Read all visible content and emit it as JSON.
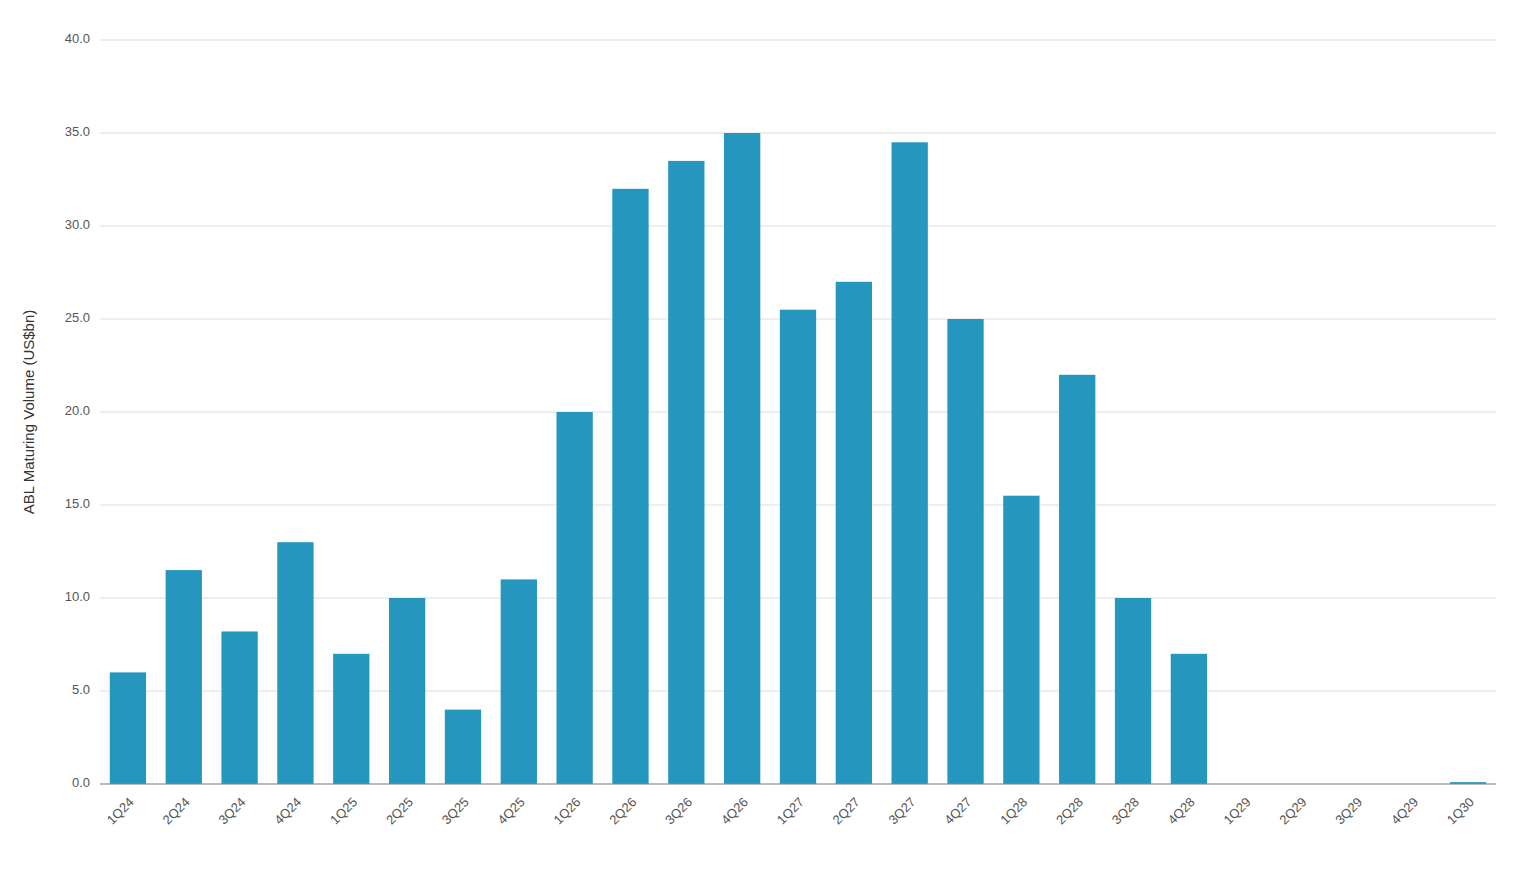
{
  "chart_data": {
    "type": "bar",
    "ylabel": "ABL Maturing Volume (US$bn)",
    "categories": [
      "1Q24",
      "2Q24",
      "3Q24",
      "4Q24",
      "1Q25",
      "2Q25",
      "3Q25",
      "4Q25",
      "1Q26",
      "2Q26",
      "3Q26",
      "4Q26",
      "1Q27",
      "2Q27",
      "3Q27",
      "4Q27",
      "1Q28",
      "2Q28",
      "3Q28",
      "4Q28",
      "1Q29",
      "2Q29",
      "3Q29",
      "4Q29",
      "1Q30"
    ],
    "values": [
      6.0,
      11.5,
      8.2,
      13.0,
      7.0,
      10.0,
      4.0,
      11.0,
      20.0,
      32.0,
      33.5,
      35.0,
      25.5,
      27.0,
      34.5,
      25.0,
      15.5,
      22.0,
      10.0,
      7.0,
      0.0,
      0.0,
      0.0,
      0.0,
      0.1
    ],
    "color": "#2596be",
    "ylim": [
      0,
      40
    ],
    "yticks": [
      {
        "value": 0,
        "label": "0.0"
      },
      {
        "value": 5,
        "label": "5.0"
      },
      {
        "value": 10,
        "label": "10.0"
      },
      {
        "value": 15,
        "label": "15.0"
      },
      {
        "value": 20,
        "label": "20.0"
      },
      {
        "value": 25,
        "label": "25.0"
      },
      {
        "value": 30,
        "label": "30.0"
      },
      {
        "value": 35,
        "label": "35.0"
      },
      {
        "value": 40,
        "label": "40.0"
      }
    ],
    "grid": true
  }
}
